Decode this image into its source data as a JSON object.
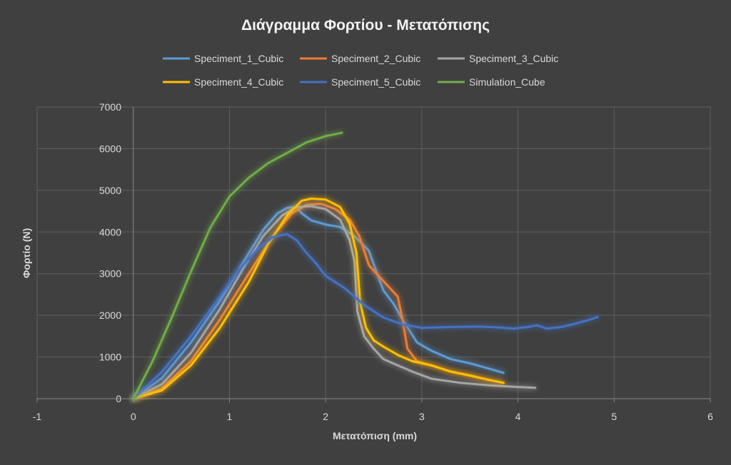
{
  "chart_data": {
    "type": "line",
    "title": "Διάγραμμα Φορτίου - Μετατόπισης",
    "xlabel": "Μετατόπιση (mm)",
    "ylabel": "Φορτίο (N)",
    "xlim": [
      -1,
      6
    ],
    "ylim": [
      0,
      7000
    ],
    "x_ticks": [
      "-1",
      "0",
      "1",
      "2",
      "3",
      "4",
      "5",
      "6"
    ],
    "y_ticks": [
      "0",
      "1000",
      "2000",
      "3000",
      "4000",
      "5000",
      "6000",
      "7000"
    ],
    "grid": true,
    "legend_position": "top",
    "glow": true,
    "series": [
      {
        "name": "Speciment_1_Cubic",
        "color": "#5b9bd5",
        "points": [
          [
            0,
            0
          ],
          [
            0.3,
            500
          ],
          [
            0.6,
            1350
          ],
          [
            0.9,
            2350
          ],
          [
            1.15,
            3300
          ],
          [
            1.35,
            4050
          ],
          [
            1.5,
            4450
          ],
          [
            1.6,
            4580
          ],
          [
            1.7,
            4600
          ],
          [
            1.75,
            4450
          ],
          [
            1.85,
            4280
          ],
          [
            2.0,
            4180
          ],
          [
            2.15,
            4120
          ],
          [
            2.3,
            3900
          ],
          [
            2.45,
            3550
          ],
          [
            2.52,
            3100
          ],
          [
            2.6,
            2600
          ],
          [
            2.7,
            2300
          ],
          [
            2.8,
            1900
          ],
          [
            2.95,
            1350
          ],
          [
            3.1,
            1150
          ],
          [
            3.3,
            950
          ],
          [
            3.5,
            850
          ],
          [
            3.7,
            720
          ],
          [
            3.85,
            620
          ]
        ]
      },
      {
        "name": "Speciment_2_Cubic",
        "color": "#ed7d31",
        "points": [
          [
            0,
            0
          ],
          [
            0.3,
            250
          ],
          [
            0.6,
            900
          ],
          [
            0.9,
            1900
          ],
          [
            1.2,
            3000
          ],
          [
            1.45,
            3900
          ],
          [
            1.65,
            4450
          ],
          [
            1.8,
            4650
          ],
          [
            1.95,
            4680
          ],
          [
            2.1,
            4550
          ],
          [
            2.25,
            4300
          ],
          [
            2.35,
            3900
          ],
          [
            2.45,
            3200
          ],
          [
            2.55,
            2950
          ],
          [
            2.65,
            2700
          ],
          [
            2.75,
            2450
          ],
          [
            2.8,
            1900
          ],
          [
            2.85,
            1200
          ],
          [
            2.95,
            900
          ],
          [
            3.1,
            800
          ],
          [
            3.3,
            650
          ],
          [
            3.5,
            550
          ],
          [
            3.7,
            450
          ],
          [
            3.85,
            380
          ]
        ]
      },
      {
        "name": "Speciment_3_Cubic",
        "color": "#a5a5a5",
        "points": [
          [
            0,
            0
          ],
          [
            0.3,
            350
          ],
          [
            0.6,
            1100
          ],
          [
            0.9,
            2150
          ],
          [
            1.15,
            3150
          ],
          [
            1.35,
            3900
          ],
          [
            1.55,
            4400
          ],
          [
            1.7,
            4600
          ],
          [
            1.85,
            4620
          ],
          [
            2.0,
            4550
          ],
          [
            2.15,
            4300
          ],
          [
            2.25,
            3800
          ],
          [
            2.3,
            3300
          ],
          [
            2.33,
            2100
          ],
          [
            2.4,
            1500
          ],
          [
            2.5,
            1200
          ],
          [
            2.6,
            950
          ],
          [
            2.75,
            800
          ],
          [
            2.9,
            650
          ],
          [
            3.1,
            480
          ],
          [
            3.4,
            380
          ],
          [
            3.7,
            320
          ],
          [
            4.0,
            280
          ],
          [
            4.18,
            260
          ]
        ]
      },
      {
        "name": "Speciment_4_Cubic",
        "color": "#ffc000",
        "points": [
          [
            0,
            0
          ],
          [
            0.3,
            200
          ],
          [
            0.6,
            800
          ],
          [
            0.9,
            1700
          ],
          [
            1.2,
            2800
          ],
          [
            1.4,
            3700
          ],
          [
            1.6,
            4400
          ],
          [
            1.75,
            4750
          ],
          [
            1.85,
            4800
          ],
          [
            2.0,
            4780
          ],
          [
            2.15,
            4600
          ],
          [
            2.25,
            4200
          ],
          [
            2.32,
            3500
          ],
          [
            2.36,
            2300
          ],
          [
            2.42,
            1700
          ],
          [
            2.5,
            1400
          ],
          [
            2.6,
            1250
          ],
          [
            2.75,
            1050
          ],
          [
            2.9,
            900
          ],
          [
            3.1,
            800
          ],
          [
            3.3,
            650
          ],
          [
            3.5,
            560
          ],
          [
            3.7,
            450
          ],
          [
            3.85,
            380
          ]
        ]
      },
      {
        "name": "Speciment_5_Cubic",
        "color": "#4472c4",
        "points": [
          [
            0,
            0
          ],
          [
            0.3,
            650
          ],
          [
            0.6,
            1500
          ],
          [
            0.9,
            2450
          ],
          [
            1.1,
            3100
          ],
          [
            1.3,
            3600
          ],
          [
            1.45,
            3880
          ],
          [
            1.6,
            3950
          ],
          [
            1.7,
            3800
          ],
          [
            1.8,
            3500
          ],
          [
            1.9,
            3250
          ],
          [
            2.0,
            2950
          ],
          [
            2.2,
            2650
          ],
          [
            2.4,
            2250
          ],
          [
            2.6,
            1950
          ],
          [
            2.8,
            1780
          ],
          [
            3.0,
            1700
          ],
          [
            3.3,
            1720
          ],
          [
            3.6,
            1730
          ],
          [
            3.8,
            1710
          ],
          [
            3.95,
            1680
          ],
          [
            4.1,
            1720
          ],
          [
            4.2,
            1760
          ],
          [
            4.3,
            1680
          ],
          [
            4.45,
            1720
          ],
          [
            4.6,
            1800
          ],
          [
            4.75,
            1900
          ],
          [
            4.83,
            1960
          ]
        ]
      },
      {
        "name": "Simulation_Cube",
        "color": "#70ad47",
        "points": [
          [
            0,
            0
          ],
          [
            0.2,
            900
          ],
          [
            0.4,
            1950
          ],
          [
            0.6,
            3050
          ],
          [
            0.8,
            4100
          ],
          [
            1.0,
            4850
          ],
          [
            1.2,
            5300
          ],
          [
            1.4,
            5650
          ],
          [
            1.6,
            5900
          ],
          [
            1.8,
            6150
          ],
          [
            2.0,
            6300
          ],
          [
            2.17,
            6380
          ]
        ]
      }
    ]
  }
}
